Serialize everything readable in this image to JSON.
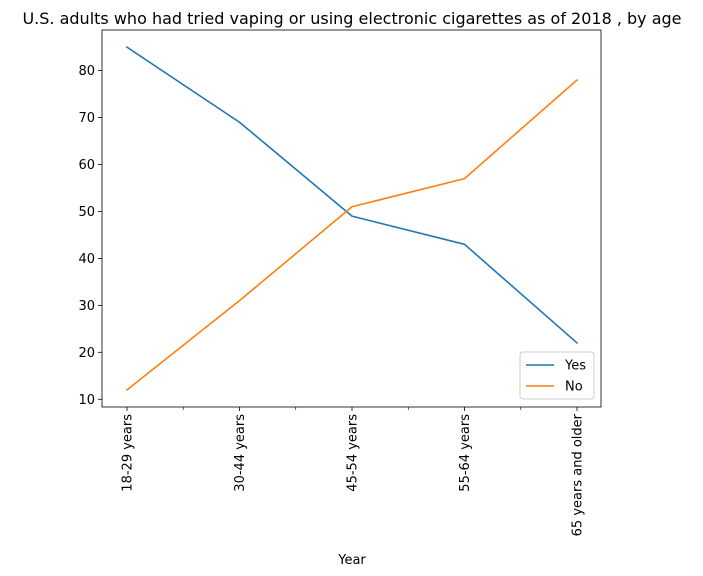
{
  "chart_data": {
    "type": "line",
    "title": "U.S. adults who had tried vaping or using electronic cigarettes as of 2018 , by age",
    "xlabel": "Year",
    "ylabel": "",
    "categories": [
      "18-29 years",
      "30-44 years",
      "45-54 years",
      "55-64 years",
      "65 years and older"
    ],
    "series": [
      {
        "name": "Yes",
        "color": "#1f77b4",
        "values": [
          85,
          69,
          49,
          43,
          22
        ]
      },
      {
        "name": "No",
        "color": "#ff7f0e",
        "values": [
          12,
          31,
          51,
          57,
          78
        ]
      }
    ],
    "ylim": [
      8.35,
      88.65
    ],
    "yticks": [
      10,
      20,
      30,
      40,
      50,
      60,
      70,
      80
    ],
    "grid": false,
    "legend_position": "lower-right"
  }
}
